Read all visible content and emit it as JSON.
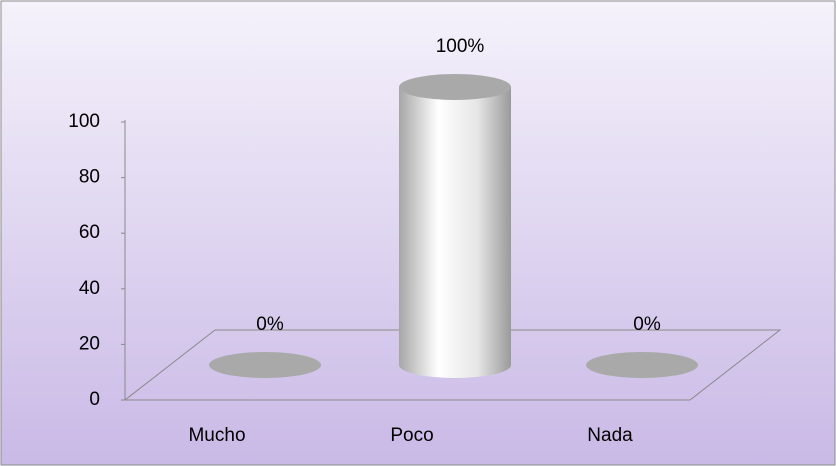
{
  "chart_data": {
    "type": "cylinder-bar",
    "categories": [
      "Mucho",
      "Poco",
      "Nada"
    ],
    "values": [
      0,
      100,
      0
    ],
    "value_labels": [
      "0%",
      "100%",
      "0%"
    ],
    "ylim": [
      0,
      100
    ],
    "yticks": [
      0,
      20,
      40,
      60,
      80,
      100
    ],
    "color": "#d9d9d9"
  }
}
